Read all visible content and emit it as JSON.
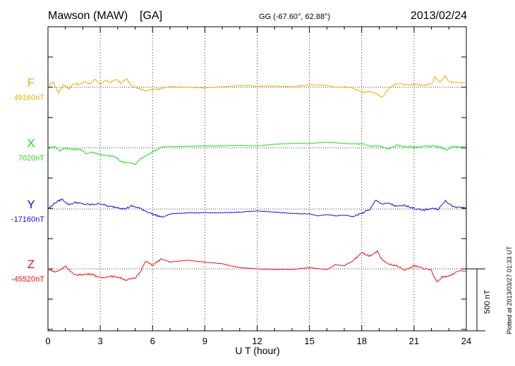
{
  "header": {
    "station": "Mawson (MAW)",
    "institute": "[GA]",
    "coords": "GG (-67.60°,  62.88°)",
    "date": "2013/02/24"
  },
  "plotted_note": "Plotted at 2013/03/27 01:33 UT",
  "scale_label": "500 nT",
  "chart_data": {
    "type": "line",
    "xlabel": "U T (hour)",
    "xlim": [
      0,
      24
    ],
    "xticks": [
      "0",
      "3",
      "6",
      "9",
      "12",
      "15",
      "18",
      "21",
      "24"
    ],
    "colors": {
      "F": "#f0b000",
      "X": "#22dd22",
      "Y": "#1010dd",
      "Z": "#ee1111"
    },
    "series": [
      {
        "name": "F",
        "baseline": "49160nT",
        "x": [
          0,
          0.3,
          0.6,
          0.9,
          1.2,
          1.5,
          1.8,
          2.1,
          2.4,
          2.7,
          3.0,
          3.3,
          3.6,
          3.9,
          4.2,
          4.5,
          4.8,
          5.1,
          5.4,
          5.7,
          6.0,
          6.5,
          7,
          8,
          9,
          10,
          11,
          12,
          13,
          14,
          15,
          16,
          16.5,
          17,
          17.5,
          18,
          18.5,
          18.9,
          19.2,
          19.5,
          19.8,
          20.1,
          20.5,
          21,
          21.5,
          22,
          22.2,
          22.5,
          22.8,
          23,
          23.5,
          24
        ],
        "values": [
          0,
          45,
          -45,
          25,
          -15,
          35,
          20,
          45,
          30,
          60,
          25,
          55,
          40,
          65,
          30,
          70,
          10,
          0,
          -20,
          -25,
          -20,
          -10,
          5,
          0,
          -5,
          5,
          15,
          10,
          10,
          5,
          20,
          15,
          0,
          5,
          -5,
          -40,
          -35,
          -55,
          -80,
          -20,
          15,
          30,
          20,
          25,
          15,
          25,
          80,
          45,
          90,
          45,
          35,
          40
        ]
      },
      {
        "name": "X",
        "baseline": "7020nT",
        "x": [
          0,
          0.4,
          0.7,
          1.0,
          1.4,
          1.8,
          2.2,
          2.6,
          3.0,
          3.4,
          3.8,
          4.2,
          4.6,
          5.0,
          5.3,
          5.7,
          6.0,
          6.3,
          6.6,
          7,
          8,
          9,
          10,
          11,
          12,
          13,
          14,
          15,
          16,
          17,
          18,
          18.5,
          19,
          19.5,
          20,
          20.5,
          21,
          21.5,
          22,
          22.5,
          22.8,
          23.2,
          23.6,
          24
        ],
        "values": [
          0,
          10,
          -25,
          0,
          -15,
          -10,
          -45,
          -35,
          -55,
          -65,
          -70,
          -110,
          -120,
          -135,
          -90,
          -60,
          -30,
          -10,
          10,
          10,
          12,
          15,
          15,
          20,
          15,
          30,
          35,
          35,
          45,
          35,
          30,
          15,
          15,
          -10,
          20,
          10,
          5,
          10,
          15,
          5,
          -20,
          10,
          5,
          15
        ]
      },
      {
        "name": "Y",
        "baseline": "-17160nT",
        "x": [
          0,
          0.4,
          0.8,
          1.2,
          1.6,
          2.0,
          2.5,
          3.0,
          3.5,
          4.0,
          4.4,
          4.8,
          5.2,
          5.6,
          6.0,
          6.3,
          6.6,
          7.0,
          8,
          9,
          10,
          11,
          12,
          13,
          14,
          15,
          15.5,
          16,
          16.5,
          17,
          17.5,
          18,
          18.5,
          18.8,
          19.2,
          19.6,
          20,
          20.5,
          21,
          21.5,
          22,
          22.4,
          22.8,
          23.2,
          23.6,
          24
        ],
        "values": [
          0,
          50,
          80,
          35,
          55,
          40,
          35,
          45,
          20,
          15,
          0,
          25,
          10,
          -15,
          -40,
          -55,
          -65,
          -40,
          -30,
          -30,
          -30,
          -25,
          -15,
          -25,
          -35,
          -40,
          -55,
          -45,
          -55,
          -50,
          -60,
          -35,
          0,
          70,
          40,
          45,
          20,
          30,
          5,
          -10,
          5,
          0,
          65,
          20,
          15,
          10
        ]
      },
      {
        "name": "Z",
        "baseline": "-45520nT",
        "x": [
          0,
          0.4,
          0.7,
          1.0,
          1.5,
          2.0,
          2.5,
          3.0,
          3.5,
          4.0,
          4.5,
          5.0,
          5.3,
          5.6,
          6.0,
          6.5,
          7,
          8,
          9,
          10,
          11,
          12,
          13,
          14,
          15,
          16,
          16.5,
          17,
          17.5,
          18,
          18.5,
          18.9,
          19.1,
          19.5,
          20,
          20.5,
          21,
          21.5,
          22,
          22.3,
          22.6,
          22.9,
          23.2,
          23.6,
          24
        ],
        "values": [
          0,
          -25,
          -10,
          25,
          -50,
          -45,
          -40,
          -75,
          -60,
          -65,
          -90,
          -75,
          -20,
          60,
          30,
          80,
          55,
          70,
          55,
          40,
          10,
          0,
          -5,
          -5,
          10,
          -5,
          35,
          25,
          65,
          130,
          100,
          140,
          85,
          40,
          25,
          -10,
          25,
          5,
          -10,
          -110,
          -65,
          -60,
          -45,
          -15,
          -20
        ]
      }
    ]
  }
}
